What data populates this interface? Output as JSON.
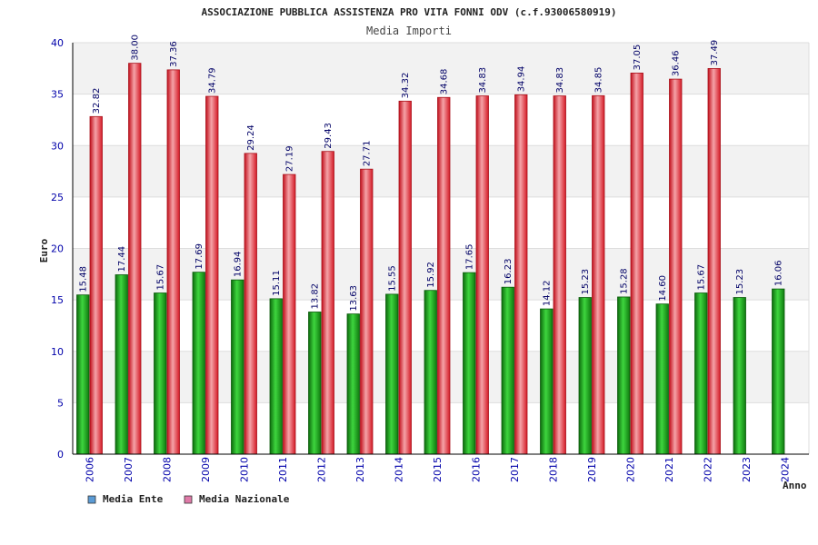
{
  "chart_data": {
    "type": "bar",
    "title": "ASSOCIAZIONE PUBBLICA ASSISTENZA PRO VITA FONNI ODV (c.f.93006580919)",
    "subtitle": "Media Importi",
    "xlabel": "Anno",
    "ylabel": "Euro",
    "ylim": [
      0,
      40
    ],
    "yticks": [
      0,
      5,
      10,
      15,
      20,
      25,
      30,
      35,
      40
    ],
    "grid": true,
    "legend_position": "bottom-left",
    "categories": [
      "2006",
      "2007",
      "2008",
      "2009",
      "2010",
      "2011",
      "2012",
      "2013",
      "2014",
      "2015",
      "2016",
      "2017",
      "2018",
      "2019",
      "2020",
      "2021",
      "2022",
      "2023",
      "2024"
    ],
    "series": [
      {
        "name": "Media Ente",
        "color": "#1a9e1a",
        "legend_color": "#5b9bd5",
        "values": [
          15.48,
          17.44,
          15.67,
          17.69,
          16.94,
          15.11,
          13.82,
          13.63,
          15.55,
          15.92,
          17.65,
          16.23,
          14.12,
          15.23,
          15.28,
          14.6,
          15.67,
          15.23,
          16.06
        ],
        "labels": [
          "15.48",
          "17.44",
          "15.67",
          "17.69",
          "16.94",
          "15.11",
          "13.82",
          "13.63",
          "15.55",
          "15.92",
          "17.65",
          "16.23",
          "14.12",
          "15.23",
          "15.28",
          "14.60",
          "15.67",
          "15.23",
          "16.06"
        ]
      },
      {
        "name": "Media Nazionale",
        "color": "#e0202a",
        "legend_color": "#e07aa8",
        "values": [
          32.82,
          38.0,
          37.36,
          34.79,
          29.24,
          27.19,
          29.43,
          27.71,
          34.32,
          34.68,
          34.83,
          34.94,
          34.83,
          34.85,
          37.05,
          36.46,
          37.49,
          null,
          null
        ],
        "labels": [
          "32.82",
          "38.00",
          "37.36",
          "34.79",
          "29.24",
          "27.19",
          "29.43",
          "27.71",
          "34.32",
          "34.68",
          "34.83",
          "34.94",
          "34.83",
          "34.85",
          "37.05",
          "36.46",
          "37.49",
          null,
          null
        ]
      }
    ]
  }
}
